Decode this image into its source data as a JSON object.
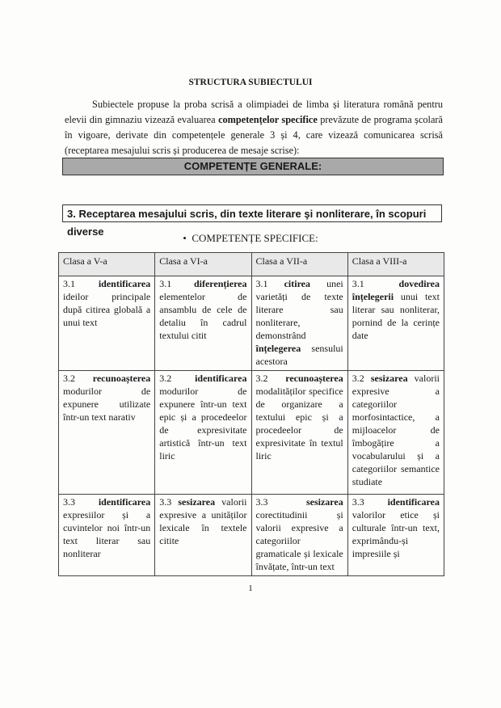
{
  "title": "STRUCTURA SUBIECTULUI",
  "intro": {
    "p1": "Subiectele propuse la proba scrisă a olimpiadei de limba și literatura română pentru elevii din gimnaziu vizează evaluarea ",
    "bold": "competențelor specifice",
    "p2": " prevăzute de programa școlară în vigoare, derivate din competențele generale 3 și 4, care vizează comunicarea scrisă (receptarea mesajului scris și producerea de mesaje scrise):"
  },
  "general_heading": "COMPETENȚE GENERALE:",
  "competence_3": "3. Receptarea mesajului scris, din texte literare şi nonliterare, în scopuri diverse",
  "specific_heading": "COMPETENȚE SPECIFICE:",
  "table": {
    "headers": [
      "Clasa a V-a",
      "Clasa a VI-a",
      "Clasa a VII-a",
      "Clasa a VIII-a"
    ],
    "rows": [
      [
        {
          "num": "3.1 ",
          "bold": "identificarea",
          "rest": " ideilor principale după citirea globală a unui text"
        },
        {
          "num": "3.1 ",
          "bold": "diferențierea",
          "rest": " elementelor de ansamblu de cele de detaliu în cadrul textului citit"
        },
        {
          "num": "3.1 ",
          "bold": "citirea",
          "rest": " unei varietăți de texte literare sau nonliterare, demonstrând ",
          "bold2": "înțelegerea",
          "rest2": " sensului acestora"
        },
        {
          "num": "3.1 ",
          "bold": "dovedirea înțelegerii",
          "rest": " unui text literar sau nonliterar, pornind de la cerințe date"
        }
      ],
      [
        {
          "num": "3.2 ",
          "bold": "recunoașterea",
          "rest": " modurilor de expunere utilizate într-un text narativ"
        },
        {
          "num": "3.2 ",
          "bold": "identificarea",
          "rest": " modurilor de expunere într-un text epic și a procedeelor de expresivitate artistică într-un text liric"
        },
        {
          "num": "3.2 ",
          "bold": "recunoașterea",
          "rest": " modalităților specifice de organizare a textului epic și a procedeelor de expresivitate în textul liric"
        },
        {
          "num": "3.2 ",
          "bold": "sesizarea",
          "rest": " valorii expresive a categoriilor morfosintactice, a mijloacelor de îmbogățire a vocabularului și a categoriilor semantice studiate"
        }
      ],
      [
        {
          "num": "3.3 ",
          "bold": "identificarea",
          "rest": " expresiilor și a cuvintelor noi într-un text literar sau nonliterar"
        },
        {
          "num": "3.3 ",
          "bold": "sesizarea",
          "rest": " valorii expresive a unităților lexicale în textele citite"
        },
        {
          "num": "3.3 ",
          "bold": "sesizarea",
          "rest": " corectitudinii și valorii expresive a categoriilor gramaticale și lexicale învățate, într-un text"
        },
        {
          "num": "3.3 ",
          "bold": "identificarea",
          "rest": " valorilor etice și culturale într-un text, exprimându-și impresiile și"
        }
      ]
    ]
  },
  "page_number": "1"
}
